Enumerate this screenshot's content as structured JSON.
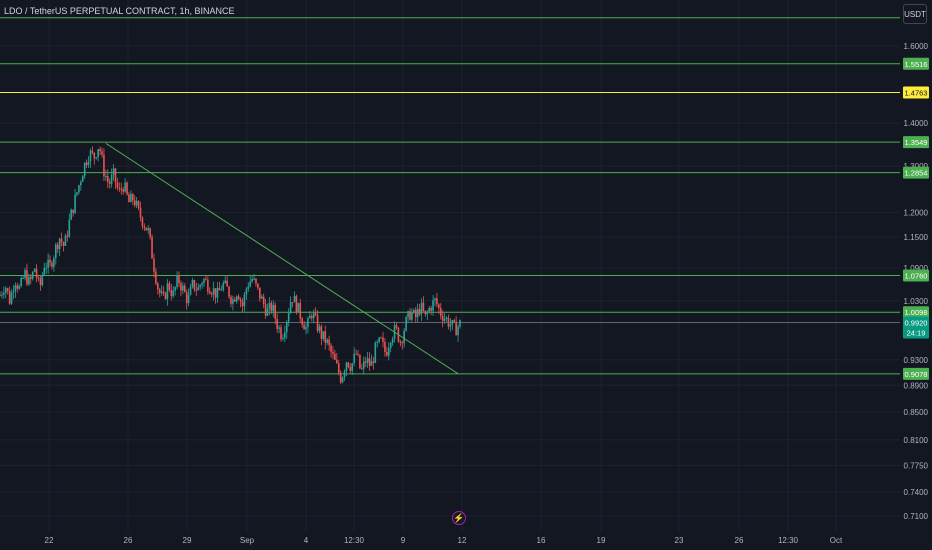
{
  "header": {
    "title": "LDO / TetherUS PERPETUAL CONTRACT, 1h, BINANCE",
    "currency_button": "USDT"
  },
  "icons": {
    "lightning": "lightning-icon"
  },
  "colors": {
    "background": "#131722",
    "grid": "#1e222d",
    "level_line": "#4caf50",
    "level_label": "#4caf50",
    "highlight_line": "#ffeb3b",
    "current_price": "#089981",
    "up_candle": "#26a69a",
    "down_candle": "#ef5350",
    "trendline": "#4caf50",
    "axis_text": "#b2b5be"
  },
  "chart_data": {
    "type": "candlestick",
    "title": "LDO / TetherUS PERPETUAL CONTRACT, 1h, BINANCE",
    "y_scale": "log",
    "ylim": [
      0.705,
      1.62
    ],
    "price_ticks": [
      "1.6000",
      "1.4000",
      "1.3000",
      "1.2000",
      "1.1500",
      "1.0900",
      "1.0300",
      "0.9300",
      "0.8900",
      "0.8500",
      "0.8100",
      "0.7750",
      "0.7400",
      "0.7100"
    ],
    "time_ticks": [
      "22",
      "26",
      "29",
      "Sep",
      "4",
      "12:30",
      "9",
      "12",
      "16",
      "19",
      "23",
      "26",
      "12:30",
      "Oct"
    ],
    "levels": [
      {
        "price": 1.5516,
        "label": "1.5516",
        "style": "green"
      },
      {
        "price": 1.4763,
        "label": "1.4763",
        "style": "yellow"
      },
      {
        "price": 1.3549,
        "label": "1.3549",
        "style": "green"
      },
      {
        "price": 1.2854,
        "label": "1.2854",
        "style": "green"
      },
      {
        "price": 1.076,
        "label": "1.0760",
        "style": "green"
      },
      {
        "price": 1.0098,
        "label": "1.0098",
        "style": "green"
      },
      {
        "price": 0.9078,
        "label": "0.9078",
        "style": "green"
      }
    ],
    "top_unlabeled_level": 1.68,
    "current_price": {
      "price": 0.992,
      "label": "0.9920",
      "countdown": "24:19"
    },
    "trendline": {
      "from": {
        "time": "Aug 24",
        "price": 1.352
      },
      "to": {
        "time": "Sep 12",
        "price": 0.908
      }
    },
    "price_path": [
      1.04,
      1.06,
      1.03,
      1.07,
      1.05,
      1.08,
      1.06,
      1.09,
      1.05,
      1.1,
      1.09,
      1.12,
      1.15,
      1.13,
      1.18,
      1.22,
      1.26,
      1.3,
      1.33,
      1.32,
      1.35,
      1.29,
      1.26,
      1.28,
      1.24,
      1.26,
      1.22,
      1.23,
      1.2,
      1.18,
      1.16,
      1.1,
      1.05,
      1.03,
      1.06,
      1.04,
      1.07,
      1.05,
      1.03,
      1.06,
      1.05,
      1.07,
      1.06,
      1.05,
      1.04,
      1.06,
      1.05,
      1.03,
      1.05,
      1.02,
      1.06,
      1.07,
      1.05,
      1.03,
      1.01,
      1.02,
      0.99,
      0.97,
      1.0,
      1.04,
      1.02,
      1.0,
      0.98,
      1.01,
      0.99,
      0.97,
      0.96,
      0.94,
      0.92,
      0.9,
      0.93,
      0.92,
      0.94,
      0.91,
      0.93,
      0.92,
      0.95,
      0.96,
      0.94,
      0.97,
      0.98,
      0.96,
      0.99,
      1.01,
      1.0,
      1.02,
      1.0,
      1.02,
      1.03,
      1.01,
      1.0,
      0.99,
      0.98,
      0.99
    ]
  }
}
